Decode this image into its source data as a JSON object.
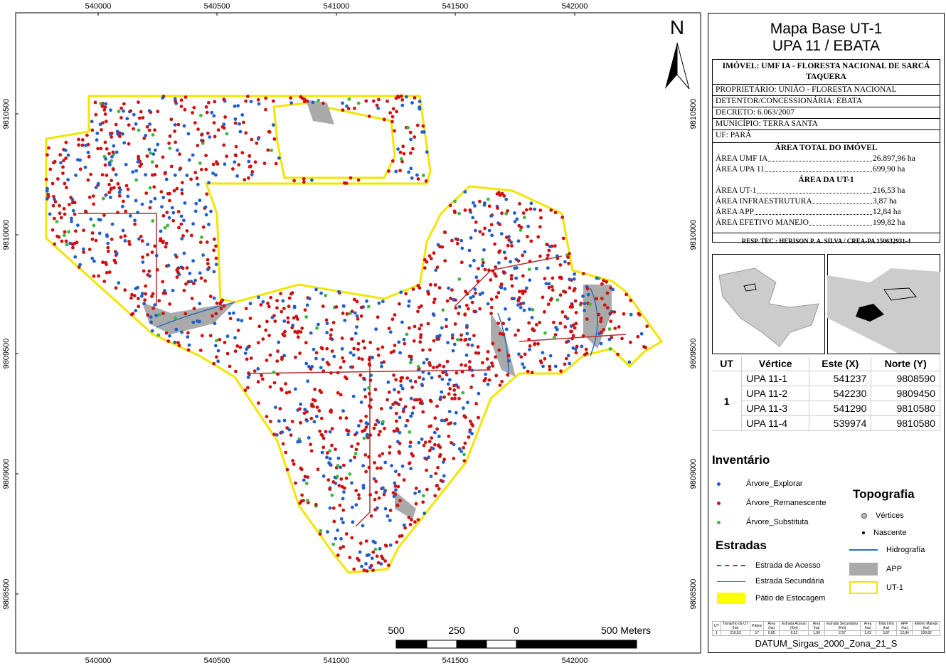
{
  "map": {
    "xticks": [
      540000,
      540500,
      541000,
      541500,
      542000
    ],
    "yticks": [
      9810500,
      9810000,
      9809500,
      9809000,
      9808500
    ],
    "north": "N",
    "scale": {
      "labels": [
        "500",
        "250",
        "0",
        "500 Meters"
      ]
    }
  },
  "panel": {
    "title": "Mapa Base UT-1",
    "subtitle": "UPA 11 / EBATA",
    "property": "IMÓVEL: UMF IA - FLORESTA NACIONAL DE SARCÁ TAQUERA",
    "lines": [
      "PROPRIETÁRIO: UNIÃO - FLORESTA NACIONAL",
      "DETENTOR/CONCESSIONÁRIA: EBATA",
      "DECRETO: 6.063/2007",
      "MUNICÍPIO: TERRA SANTA",
      "UF: PARÁ"
    ],
    "total_heading": "ÁREA TOTAL DO IMÓVEL",
    "total": [
      {
        "label": "ÁREA UMF IA",
        "value": "26.897,96 ha"
      },
      {
        "label": "ÁREA UPA 11",
        "value": "699,90 ha"
      }
    ],
    "ut_heading": "ÁREA DA UT-1",
    "ut": [
      {
        "label": "ÁREA UT-1",
        "value": "216,53 ha"
      },
      {
        "label": "ÁREA INFRAESTRUTURA",
        "value": "3,87 ha"
      },
      {
        "label": "ÁREA APP",
        "value": "12,84 ha"
      },
      {
        "label": "ÁREA EFETIVO MANEJO",
        "value": "199,82 ha"
      }
    ],
    "resp": "RESP. TEC.: HERISON P. A. SILVA / CREA-PA 150632931-4"
  },
  "vertices": {
    "header": [
      "UT",
      "Vértice",
      "Este (X)",
      "Norte (Y)"
    ],
    "ut": "1",
    "rows": [
      [
        "UPA 11-1",
        "541237",
        "9808590"
      ],
      [
        "UPA 11-2",
        "542230",
        "9809450"
      ],
      [
        "UPA 11-3",
        "541290",
        "9810580"
      ],
      [
        "UPA 11-4",
        "539974",
        "9810580"
      ]
    ]
  },
  "legend": {
    "inventory_title": "Inventário",
    "inventory": [
      {
        "name": "Árvore_Explorar",
        "color": "#1f5fcc"
      },
      {
        "name": "Árvore_Remanescente",
        "color": "#d01010"
      },
      {
        "name": "Árvore_Substituta",
        "color": "#3cb83c"
      }
    ],
    "roads_title": "Estradas",
    "roads": [
      "Estrada de Acesso",
      "Estrada Secundária",
      "Pátio de Estocagem"
    ],
    "topo_title": "Topografia",
    "topo": [
      "Vértices",
      "Nascente",
      "Hidrografía",
      "APP",
      "UT-1"
    ]
  },
  "summary": {
    "header": [
      "UT",
      "Tamanho da UT (ha)",
      "Pátios",
      "Área (ha)",
      "Estrada Acesso (Km)",
      "Área (ha)",
      "Estrada Secundária (Km)",
      "Área (ha)",
      "Total Infra (ha)",
      "APP (ha)",
      "Efetivo Manejo (ha)"
    ],
    "row": [
      "1",
      "216,53",
      "17",
      "0,85",
      "6,32",
      "1,99",
      "2,57",
      "1,03",
      "3,87",
      "12,84",
      "199,82"
    ]
  },
  "datum": "DATUM_Sirgas_2000_Zona_21_S"
}
